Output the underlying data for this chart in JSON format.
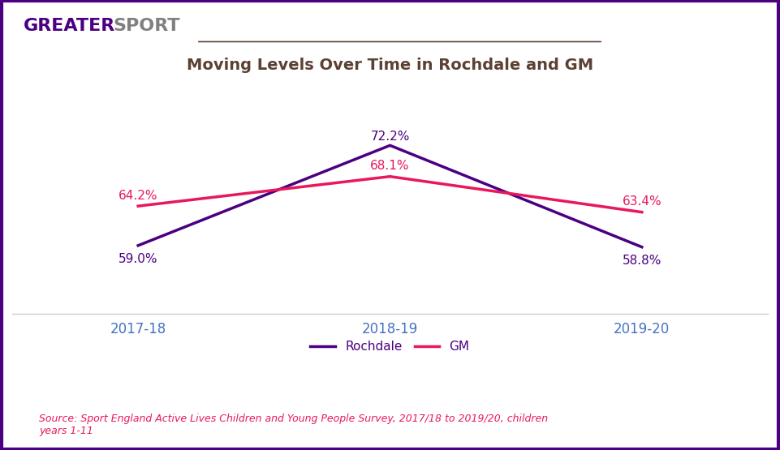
{
  "title": "Moving Levels Over Time in Rochdale and GM",
  "years": [
    "2017-18",
    "2018-19",
    "2019-20"
  ],
  "rochdale_values": [
    59.0,
    72.2,
    58.8
  ],
  "gm_values": [
    64.2,
    68.1,
    63.4
  ],
  "rochdale_color": "#4B0082",
  "gm_color": "#E8185A",
  "title_color": "#5C4033",
  "axis_label_color": "#4472C4",
  "greater_color": "#4B0082",
  "sport_color": "#808080",
  "source_text": "Source: Sport England Active Lives Children and Young People Survey, 2017/18 to 2019/20, children\nyears 1-11",
  "border_color": "#4B0082",
  "line_width": 2.5,
  "ylim": [
    50,
    80
  ],
  "figsize": [
    9.61,
    5.55
  ],
  "dpi": 100
}
